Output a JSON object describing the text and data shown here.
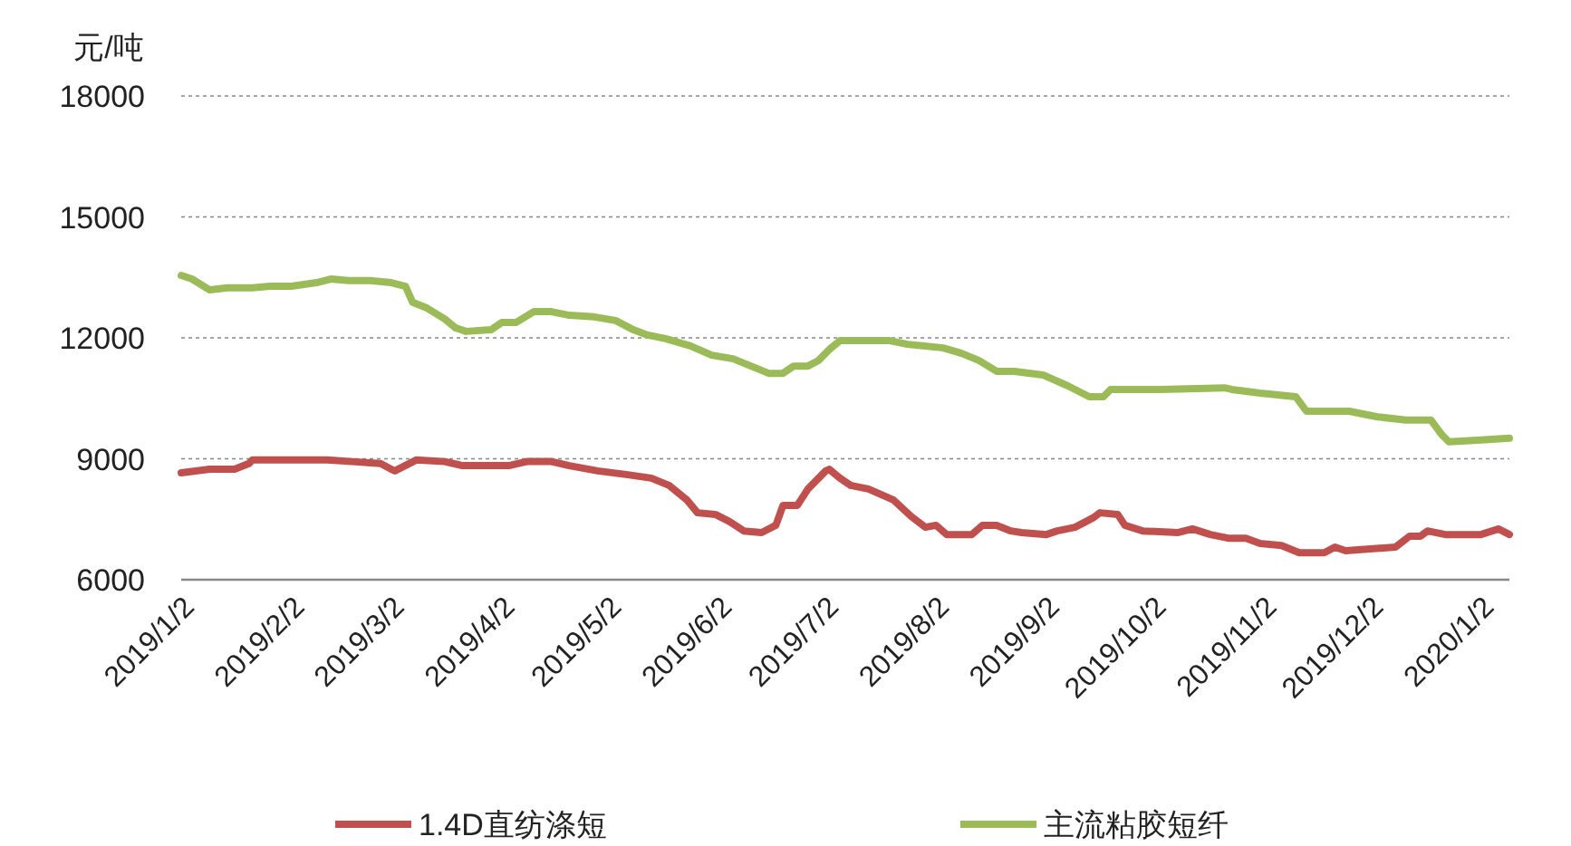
{
  "chart_data": {
    "type": "line",
    "ylabel": "元/吨",
    "xlim": [
      "2019-01-02",
      "2020-01-10"
    ],
    "ylim": [
      6000,
      18000
    ],
    "yticks": [
      6000,
      9000,
      12000,
      15000,
      18000
    ],
    "xticks": [
      {
        "value": "2019-01-02",
        "label": "2019/1/2"
      },
      {
        "value": "2019-02-02",
        "label": "2019/2/2"
      },
      {
        "value": "2019-03-02",
        "label": "2019/3/2"
      },
      {
        "value": "2019-04-02",
        "label": "2019/4/2"
      },
      {
        "value": "2019-05-02",
        "label": "2019/5/2"
      },
      {
        "value": "2019-06-02",
        "label": "2019/6/2"
      },
      {
        "value": "2019-07-02",
        "label": "2019/7/2"
      },
      {
        "value": "2019-08-02",
        "label": "2019/8/2"
      },
      {
        "value": "2019-09-02",
        "label": "2019/9/2"
      },
      {
        "value": "2019-10-02",
        "label": "2019/10/2"
      },
      {
        "value": "2019-11-02",
        "label": "2019/11/2"
      },
      {
        "value": "2019-12-02",
        "label": "2019/12/2"
      },
      {
        "value": "2020-01-02",
        "label": "2020/1/2"
      }
    ],
    "grid": "y",
    "legend": "bottom",
    "series": [
      {
        "name": "1.4D直纺涤短",
        "color": "#c0504d",
        "x": [
          "2019-01-02",
          "2019-01-10",
          "2019-01-17",
          "2019-01-21",
          "2019-01-22",
          "2019-02-12",
          "2019-02-19",
          "2019-02-27",
          "2019-03-02",
          "2019-03-03",
          "2019-03-07",
          "2019-03-09",
          "2019-03-17",
          "2019-03-22",
          "2019-04-04",
          "2019-04-09",
          "2019-04-16",
          "2019-04-21",
          "2019-04-29",
          "2019-05-07",
          "2019-05-14",
          "2019-05-19",
          "2019-05-24",
          "2019-05-27",
          "2019-06-01",
          "2019-06-05",
          "2019-06-09",
          "2019-06-14",
          "2019-06-18",
          "2019-06-20",
          "2019-06-24",
          "2019-06-27",
          "2019-07-02",
          "2019-07-03",
          "2019-07-06",
          "2019-07-09",
          "2019-07-14",
          "2019-07-21",
          "2019-07-26",
          "2019-07-30",
          "2019-08-02",
          "2019-08-05",
          "2019-08-12",
          "2019-08-15",
          "2019-08-19",
          "2019-08-23",
          "2019-08-26",
          "2019-09-02",
          "2019-09-05",
          "2019-09-10",
          "2019-09-15",
          "2019-09-17",
          "2019-09-22",
          "2019-09-24",
          "2019-09-29",
          "2019-10-09",
          "2019-10-13",
          "2019-10-18",
          "2019-10-23",
          "2019-10-28",
          "2019-11-01",
          "2019-11-07",
          "2019-11-12",
          "2019-11-19",
          "2019-11-22",
          "2019-11-25",
          "2019-12-09",
          "2019-12-13",
          "2019-12-16",
          "2019-12-18",
          "2019-12-23",
          "2020-01-02",
          "2020-01-07",
          "2020-01-10"
        ],
        "values": [
          8650,
          8740,
          8740,
          8880,
          8970,
          8970,
          8930,
          8880,
          8740,
          8700,
          8880,
          8970,
          8930,
          8830,
          8830,
          8930,
          8930,
          8830,
          8700,
          8610,
          8520,
          8340,
          7980,
          7660,
          7620,
          7440,
          7210,
          7170,
          7350,
          7840,
          7840,
          8250,
          8700,
          8740,
          8520,
          8340,
          8250,
          7980,
          7570,
          7300,
          7350,
          7120,
          7120,
          7350,
          7350,
          7210,
          7170,
          7120,
          7210,
          7300,
          7530,
          7660,
          7620,
          7350,
          7210,
          7170,
          7260,
          7120,
          7030,
          7030,
          6900,
          6850,
          6670,
          6670,
          6810,
          6720,
          6810,
          7080,
          7080,
          7210,
          7120,
          7120,
          7260,
          7120
        ]
      },
      {
        "name": "主流粘胶短纤",
        "color": "#9bbb59",
        "x": [
          "2019-01-02",
          "2019-01-05",
          "2019-01-10",
          "2019-01-15",
          "2019-01-22",
          "2019-01-27",
          "2019-02-02",
          "2019-02-09",
          "2019-02-13",
          "2019-02-18",
          "2019-02-24",
          "2019-03-02",
          "2019-03-06",
          "2019-03-08",
          "2019-03-12",
          "2019-03-17",
          "2019-03-20",
          "2019-03-23",
          "2019-03-30",
          "2019-04-02",
          "2019-04-06",
          "2019-04-11",
          "2019-04-16",
          "2019-04-21",
          "2019-04-28",
          "2019-05-04",
          "2019-05-09",
          "2019-05-13",
          "2019-05-18",
          "2019-05-25",
          "2019-05-31",
          "2019-06-06",
          "2019-06-11",
          "2019-06-16",
          "2019-06-20",
          "2019-06-23",
          "2019-06-27",
          "2019-06-30",
          "2019-07-03",
          "2019-07-06",
          "2019-07-20",
          "2019-07-25",
          "2019-08-04",
          "2019-08-09",
          "2019-08-14",
          "2019-08-19",
          "2019-08-24",
          "2019-09-01",
          "2019-09-08",
          "2019-09-14",
          "2019-09-18",
          "2019-09-20",
          "2019-10-04",
          "2019-10-22",
          "2019-10-24",
          "2019-11-01",
          "2019-11-11",
          "2019-11-14",
          "2019-11-26",
          "2019-12-04",
          "2019-12-12",
          "2019-12-19",
          "2019-12-22",
          "2019-12-24",
          "2020-01-01",
          "2020-01-10"
        ],
        "values": [
          13550,
          13460,
          13190,
          13240,
          13240,
          13280,
          13280,
          13370,
          13460,
          13420,
          13420,
          13370,
          13280,
          12880,
          12740,
          12470,
          12250,
          12160,
          12200,
          12380,
          12380,
          12650,
          12650,
          12560,
          12520,
          12430,
          12200,
          12070,
          11980,
          11800,
          11570,
          11480,
          11300,
          11120,
          11120,
          11300,
          11300,
          11440,
          11710,
          11930,
          11930,
          11840,
          11750,
          11620,
          11440,
          11170,
          11170,
          11080,
          10810,
          10540,
          10540,
          10720,
          10720,
          10760,
          10720,
          10630,
          10540,
          10180,
          10180,
          10040,
          9960,
          9960,
          9600,
          9420,
          9460,
          9510
        ]
      }
    ]
  }
}
